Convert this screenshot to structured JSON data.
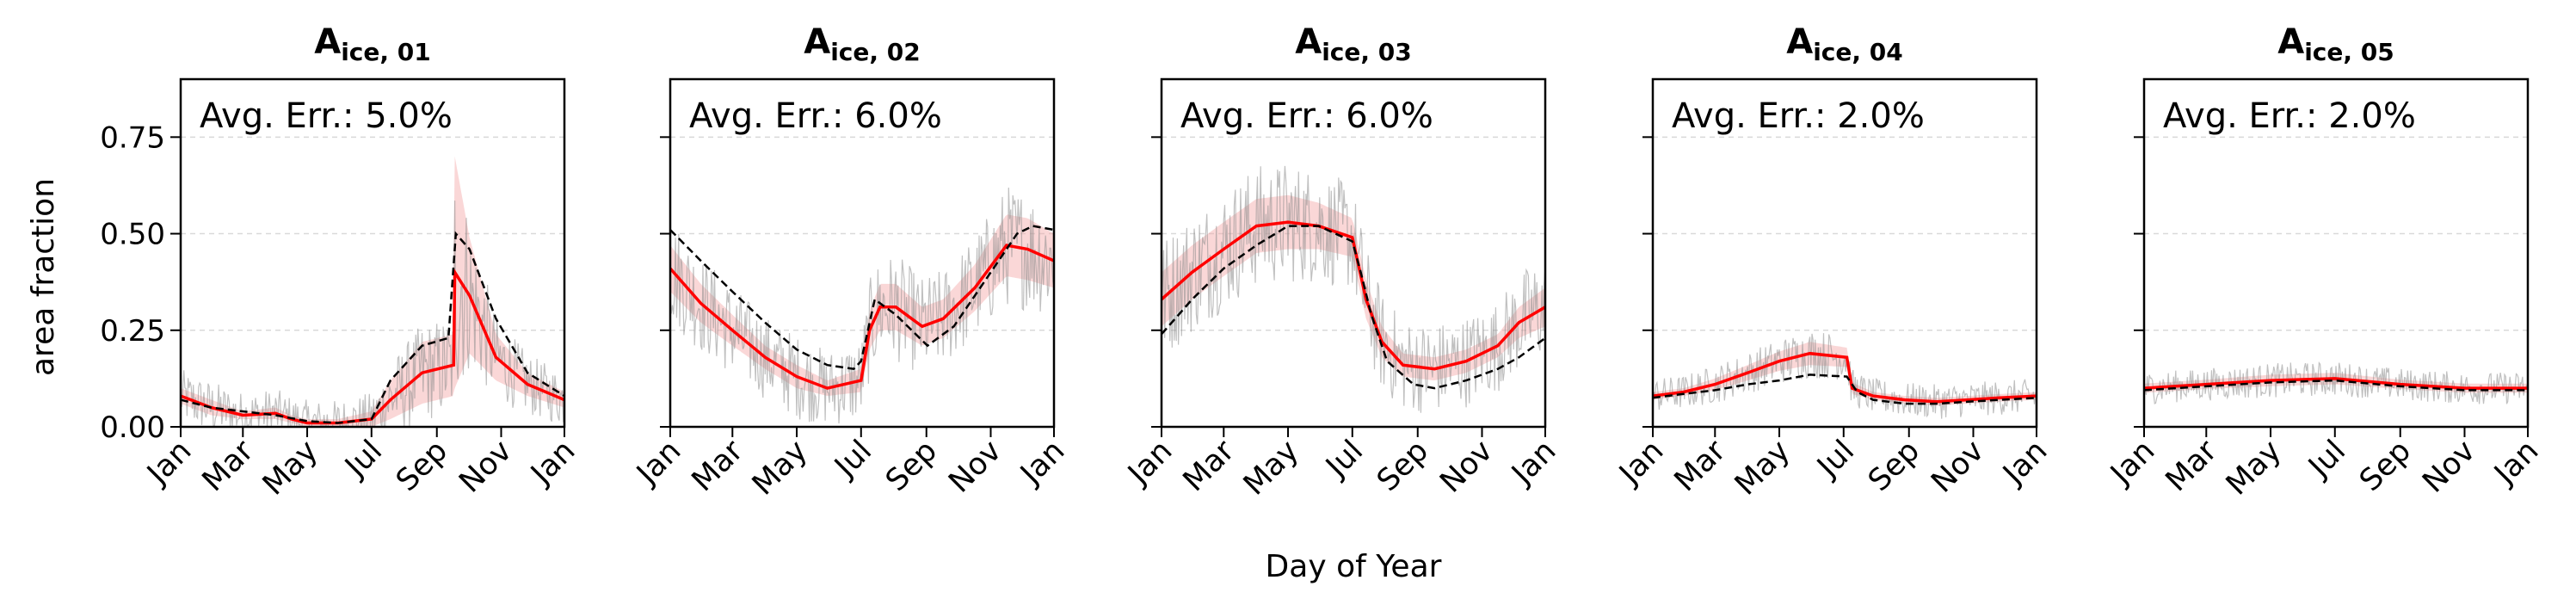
{
  "figure": {
    "ylabel": "area fraction",
    "xlabel": "Day of Year"
  },
  "chart_data": [
    {
      "type": "line",
      "title_main": "A",
      "title_sub": "ice, 01",
      "annotation": "Avg. Err.: 5.0%",
      "xlabel": "",
      "ylabel": "area fraction",
      "xlim": [
        1,
        365
      ],
      "ylim": [
        0,
        0.9
      ],
      "xtick_labels": [
        "Jan",
        "Mar",
        "May",
        "Jul",
        "Sep",
        "Nov",
        "Jan"
      ],
      "xtick_values": [
        1,
        60,
        121,
        182,
        244,
        305,
        365
      ],
      "ytick_labels": [
        "0.00",
        "0.25",
        "0.50",
        "0.75"
      ],
      "ytick_values": [
        0,
        0.25,
        0.5,
        0.75
      ],
      "grid": "horizontal dashed",
      "series": [
        {
          "style": "solid red",
          "x": [
            1,
            30,
            60,
            91,
            106,
            121,
            150,
            182,
            200,
            230,
            260,
            261,
            275,
            300,
            330,
            365
          ],
          "y": [
            0.08,
            0.05,
            0.03,
            0.035,
            0.02,
            0.01,
            0.01,
            0.02,
            0.07,
            0.14,
            0.16,
            0.4,
            0.34,
            0.18,
            0.11,
            0.07
          ]
        },
        {
          "style": "dashed black",
          "x": [
            1,
            30,
            60,
            91,
            121,
            150,
            182,
            200,
            230,
            255,
            262,
            275,
            300,
            330,
            365
          ],
          "y": [
            0.07,
            0.05,
            0.04,
            0.03,
            0.015,
            0.01,
            0.02,
            0.12,
            0.21,
            0.23,
            0.5,
            0.46,
            0.28,
            0.14,
            0.08
          ]
        }
      ],
      "band_halfwidth": [
        0.02,
        0.02,
        0.01,
        0.015,
        0.01,
        0.01,
        0.01,
        0.02,
        0.05,
        0.08,
        0.08,
        0.3,
        0.15,
        0.06,
        0.03,
        0.02
      ],
      "noise_amp": 0.05
    },
    {
      "type": "line",
      "title_main": "A",
      "title_sub": "ice, 02",
      "annotation": "Avg. Err.: 6.0%",
      "xlabel": "",
      "ylabel": "",
      "xlim": [
        1,
        365
      ],
      "ylim": [
        0,
        0.9
      ],
      "xtick_labels": [
        "Jan",
        "Mar",
        "May",
        "Jul",
        "Sep",
        "Nov",
        "Jan"
      ],
      "xtick_values": [
        1,
        60,
        121,
        182,
        244,
        305,
        365
      ],
      "grid": "horizontal dashed",
      "series": [
        {
          "style": "solid red",
          "x": [
            1,
            30,
            60,
            91,
            121,
            150,
            182,
            190,
            200,
            215,
            240,
            260,
            290,
            320,
            340,
            365
          ],
          "y": [
            0.41,
            0.32,
            0.25,
            0.18,
            0.13,
            0.1,
            0.12,
            0.25,
            0.31,
            0.31,
            0.26,
            0.28,
            0.36,
            0.47,
            0.46,
            0.43
          ]
        },
        {
          "style": "dashed black",
          "x": [
            1,
            30,
            60,
            91,
            121,
            150,
            175,
            182,
            195,
            215,
            245,
            270,
            300,
            330,
            345,
            365
          ],
          "y": [
            0.51,
            0.43,
            0.35,
            0.27,
            0.2,
            0.16,
            0.15,
            0.17,
            0.33,
            0.29,
            0.21,
            0.26,
            0.38,
            0.5,
            0.52,
            0.51
          ]
        }
      ],
      "band_halfwidth": [
        0.06,
        0.05,
        0.04,
        0.03,
        0.03,
        0.02,
        0.03,
        0.05,
        0.06,
        0.06,
        0.05,
        0.05,
        0.06,
        0.08,
        0.08,
        0.07
      ],
      "noise_amp": 0.08
    },
    {
      "type": "line",
      "title_main": "A",
      "title_sub": "ice, 03",
      "annotation": "Avg. Err.: 6.0%",
      "xlabel": "",
      "ylabel": "",
      "xlim": [
        1,
        365
      ],
      "ylim": [
        0,
        0.9
      ],
      "xtick_labels": [
        "Jan",
        "Mar",
        "May",
        "Jul",
        "Sep",
        "Nov",
        "Jan"
      ],
      "xtick_values": [
        1,
        60,
        121,
        182,
        244,
        305,
        365
      ],
      "grid": "horizontal dashed",
      "series": [
        {
          "style": "solid red",
          "x": [
            1,
            30,
            60,
            91,
            121,
            150,
            182,
            195,
            210,
            230,
            260,
            290,
            320,
            340,
            365
          ],
          "y": [
            0.33,
            0.4,
            0.46,
            0.52,
            0.53,
            0.52,
            0.49,
            0.33,
            0.22,
            0.16,
            0.15,
            0.17,
            0.21,
            0.27,
            0.31
          ]
        },
        {
          "style": "dashed black",
          "x": [
            1,
            30,
            60,
            91,
            121,
            150,
            182,
            190,
            200,
            215,
            240,
            260,
            290,
            320,
            340,
            365
          ],
          "y": [
            0.24,
            0.33,
            0.41,
            0.47,
            0.52,
            0.52,
            0.48,
            0.4,
            0.29,
            0.17,
            0.11,
            0.1,
            0.12,
            0.15,
            0.18,
            0.23
          ]
        }
      ],
      "band_halfwidth": [
        0.07,
        0.07,
        0.07,
        0.07,
        0.07,
        0.06,
        0.05,
        0.05,
        0.04,
        0.03,
        0.03,
        0.03,
        0.03,
        0.04,
        0.05
      ],
      "noise_amp": 0.09
    },
    {
      "type": "line",
      "title_main": "A",
      "title_sub": "ice, 04",
      "annotation": "Avg. Err.: 2.0%",
      "xlabel": "",
      "ylabel": "",
      "xlim": [
        1,
        365
      ],
      "ylim": [
        0,
        0.9
      ],
      "xtick_labels": [
        "Jan",
        "Mar",
        "May",
        "Jul",
        "Sep",
        "Nov",
        "Jan"
      ],
      "xtick_values": [
        1,
        60,
        121,
        182,
        244,
        305,
        365
      ],
      "grid": "horizontal dashed",
      "series": [
        {
          "style": "solid red",
          "x": [
            1,
            30,
            60,
            91,
            121,
            150,
            185,
            190,
            210,
            240,
            270,
            300,
            330,
            365
          ],
          "y": [
            0.08,
            0.09,
            0.11,
            0.14,
            0.17,
            0.19,
            0.18,
            0.1,
            0.08,
            0.07,
            0.065,
            0.07,
            0.075,
            0.08
          ]
        },
        {
          "style": "dashed black",
          "x": [
            1,
            30,
            60,
            91,
            121,
            150,
            185,
            195,
            210,
            240,
            270,
            300,
            330,
            365
          ],
          "y": [
            0.075,
            0.085,
            0.095,
            0.11,
            0.12,
            0.135,
            0.13,
            0.09,
            0.07,
            0.06,
            0.06,
            0.065,
            0.07,
            0.075
          ]
        }
      ],
      "band_halfwidth": [
        0.01,
        0.01,
        0.015,
        0.02,
        0.025,
        0.03,
        0.025,
        0.015,
        0.01,
        0.01,
        0.01,
        0.01,
        0.01,
        0.01
      ],
      "noise_amp": 0.035
    },
    {
      "type": "line",
      "title_main": "A",
      "title_sub": "ice, 05",
      "annotation": "Avg. Err.: 2.0%",
      "xlabel": "",
      "ylabel": "",
      "xlim": [
        1,
        365
      ],
      "ylim": [
        0,
        0.9
      ],
      "xtick_labels": [
        "Jan",
        "Mar",
        "May",
        "Jul",
        "Sep",
        "Nov",
        "Jan"
      ],
      "xtick_values": [
        1,
        60,
        121,
        182,
        244,
        305,
        365
      ],
      "grid": "horizontal dashed",
      "series": [
        {
          "style": "solid red",
          "x": [
            1,
            60,
            121,
            182,
            244,
            305,
            365
          ],
          "y": [
            0.1,
            0.11,
            0.12,
            0.125,
            0.11,
            0.1,
            0.1
          ]
        },
        {
          "style": "dashed black",
          "x": [
            1,
            60,
            121,
            182,
            244,
            305,
            365
          ],
          "y": [
            0.095,
            0.105,
            0.115,
            0.12,
            0.105,
            0.095,
            0.095
          ]
        }
      ],
      "band_halfwidth": [
        0.012,
        0.012,
        0.015,
        0.015,
        0.012,
        0.012,
        0.012
      ],
      "noise_amp": 0.03
    }
  ]
}
